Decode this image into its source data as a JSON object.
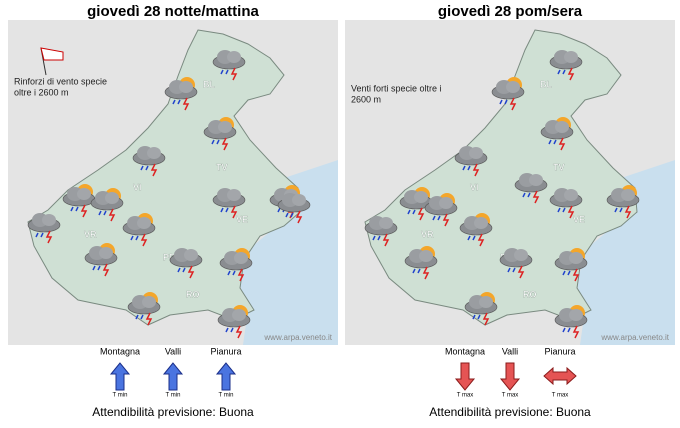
{
  "panels": [
    {
      "title": "giovedì 28 notte/mattina",
      "note": [
        "Rinforzi di vento specie",
        "oltre i 2600 m"
      ],
      "provinces": [
        "BL",
        "TV",
        "VI",
        "VE",
        "VR",
        "PD",
        "RO"
      ],
      "watermark": "www.arpa.veneto.it",
      "trends": [
        {
          "zone": "Montagna",
          "label": "T min"
        },
        {
          "zone": "Valli",
          "label": "T min"
        },
        {
          "zone": "Pianura",
          "label": "T min"
        }
      ],
      "reliability": "Attendibilità previsione: Buona"
    },
    {
      "title": "giovedì 28 pom/sera",
      "note": [
        "Venti forti specie oltre i",
        "2600 m"
      ],
      "provinces": [
        "BL",
        "TV",
        "VI",
        "VE",
        "VR",
        "PD",
        "RO"
      ],
      "watermark": "www.arpa.veneto.it",
      "trends": [
        {
          "zone": "Montagna",
          "label": "T max"
        },
        {
          "zone": "Valli",
          "label": "T max"
        },
        {
          "zone": "Pianura",
          "label": "T max"
        }
      ],
      "reliability": "Attendibilità previsione: Buona"
    }
  ]
}
